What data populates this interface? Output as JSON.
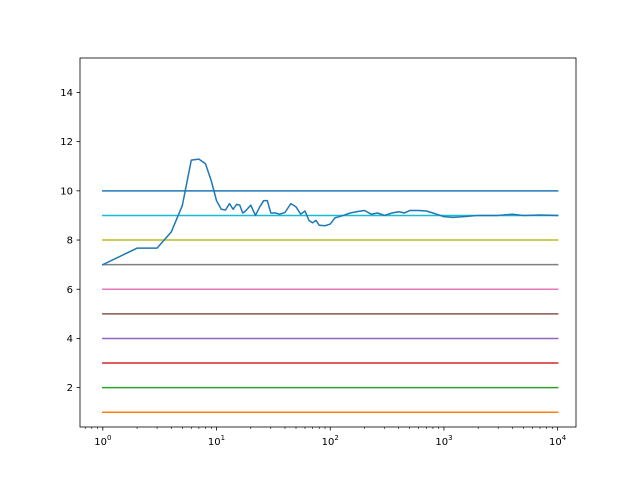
{
  "chart_data": {
    "type": "line",
    "title": "",
    "xlabel": "",
    "ylabel": "",
    "xscale": "log",
    "xlim": [
      0.63,
      14500
    ],
    "ylim": [
      0.4,
      15.4
    ],
    "grid": false,
    "legend": "none",
    "x_ticks": [
      {
        "value": 1,
        "base": "10",
        "exp": "0"
      },
      {
        "value": 10,
        "base": "10",
        "exp": "1"
      },
      {
        "value": 100,
        "base": "10",
        "exp": "2"
      },
      {
        "value": 1000,
        "base": "10",
        "exp": "3"
      },
      {
        "value": 10000,
        "base": "10",
        "exp": "4"
      }
    ],
    "y_ticks": [
      "2",
      "4",
      "6",
      "8",
      "10",
      "12",
      "14"
    ],
    "series": [
      {
        "color": "#1f77b4",
        "x": [
          1,
          10000
        ],
        "y": [
          10,
          10
        ]
      },
      {
        "color": "#ff7f0e",
        "x": [
          1,
          10000
        ],
        "y": [
          1,
          1
        ]
      },
      {
        "color": "#2ca02c",
        "x": [
          1,
          10000
        ],
        "y": [
          2,
          2
        ]
      },
      {
        "color": "#d62728",
        "x": [
          1,
          10000
        ],
        "y": [
          3,
          3
        ]
      },
      {
        "color": "#9467bd",
        "x": [
          1,
          10000
        ],
        "y": [
          4,
          4
        ]
      },
      {
        "color": "#8c564b",
        "x": [
          1,
          10000
        ],
        "y": [
          5,
          5
        ]
      },
      {
        "color": "#e377c2",
        "x": [
          1,
          10000
        ],
        "y": [
          6,
          6
        ]
      },
      {
        "color": "#7f7f7f",
        "x": [
          1,
          10000
        ],
        "y": [
          7,
          7
        ]
      },
      {
        "color": "#bcbd22",
        "x": [
          1,
          10000
        ],
        "y": [
          8,
          8
        ]
      },
      {
        "color": "#17becf",
        "x": [
          1,
          10000
        ],
        "y": [
          9,
          9
        ]
      },
      {
        "color": "#1f77b4",
        "x": [
          1,
          2,
          3,
          4,
          5,
          6,
          7,
          8,
          9,
          10,
          11,
          12,
          13,
          14,
          15,
          16,
          17,
          18,
          20,
          22,
          24,
          26,
          28,
          30,
          33,
          36,
          40,
          45,
          50,
          55,
          60,
          65,
          70,
          75,
          80,
          90,
          100,
          110,
          120,
          130,
          150,
          170,
          200,
          230,
          260,
          300,
          350,
          400,
          450,
          500,
          600,
          700,
          800,
          900,
          1000,
          1200,
          1500,
          2000,
          3000,
          4000,
          5000,
          7000,
          10000
        ],
        "y": [
          7.0,
          7.67,
          7.67,
          8.33,
          9.4,
          11.25,
          11.29,
          11.1,
          10.4,
          9.6,
          9.25,
          9.22,
          9.48,
          9.25,
          9.45,
          9.42,
          9.1,
          9.18,
          9.42,
          9.0,
          9.35,
          9.6,
          9.6,
          9.1,
          9.1,
          9.05,
          9.12,
          9.48,
          9.35,
          9.05,
          9.18,
          8.8,
          8.7,
          8.8,
          8.6,
          8.58,
          8.65,
          8.9,
          8.95,
          9.0,
          9.1,
          9.15,
          9.2,
          9.05,
          9.1,
          9.0,
          9.1,
          9.15,
          9.1,
          9.2,
          9.2,
          9.18,
          9.1,
          9.02,
          8.95,
          8.92,
          8.95,
          9.0,
          9.0,
          9.05,
          9.0,
          9.02,
          9.0
        ]
      }
    ]
  }
}
